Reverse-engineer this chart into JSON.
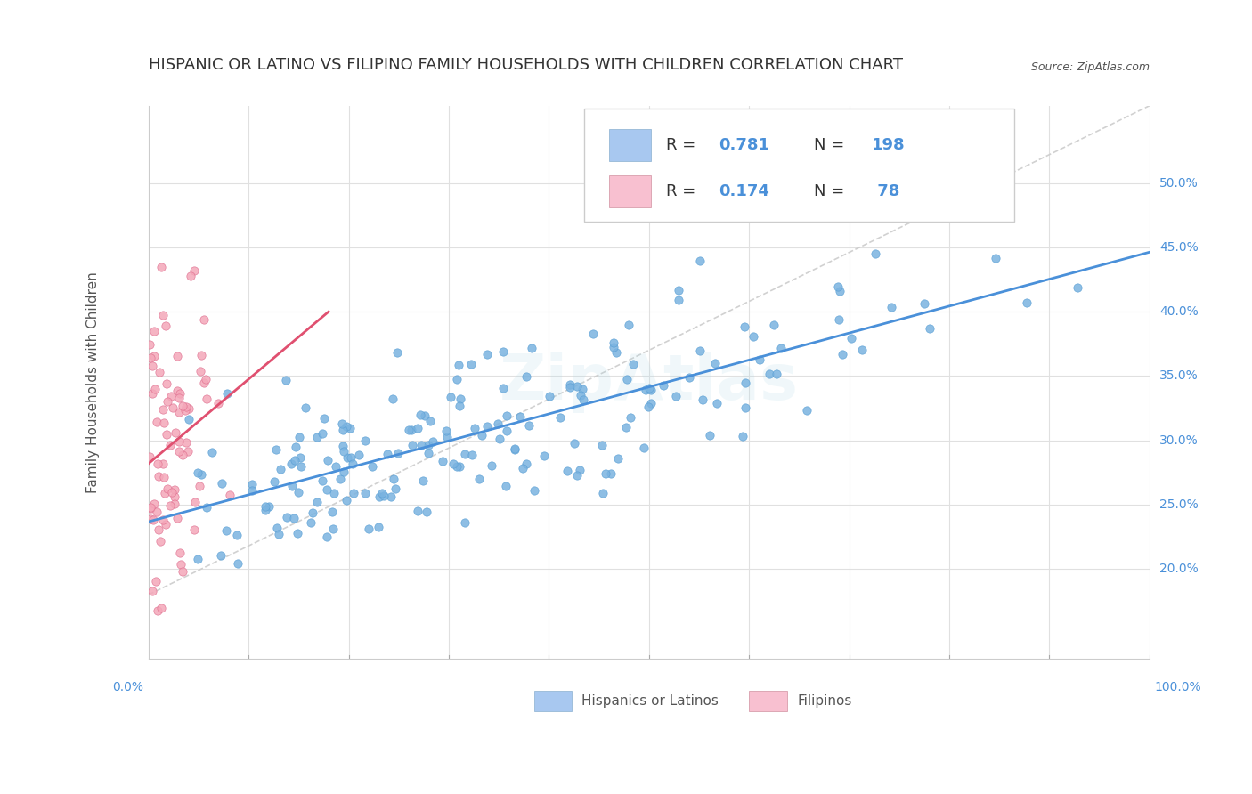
{
  "title": "HISPANIC OR LATINO VS FILIPINO FAMILY HOUSEHOLDS WITH CHILDREN CORRELATION CHART",
  "source": "Source: ZipAtlas.com",
  "ylabel": "Family Households with Children",
  "xlim": [
    0.0,
    1.0
  ],
  "ylim": [
    0.13,
    0.56
  ],
  "blue_R": 0.781,
  "blue_N": 198,
  "pink_R": 0.174,
  "pink_N": 78,
  "blue_color": "#7ab3e0",
  "pink_color": "#f4a7b9",
  "blue_marker_edge": "#5a9fd4",
  "pink_marker_edge": "#e07090",
  "blue_line_color": "#4a90d9",
  "pink_line_color": "#e05070",
  "legend_box_blue": "#a8c8f0",
  "legend_box_pink": "#f8c0d0",
  "tick_color": "#4a90d9",
  "grid_color": "#e0e0e0",
  "title_fontsize": 13,
  "axis_label_fontsize": 11,
  "tick_fontsize": 10,
  "legend_fontsize": 13
}
